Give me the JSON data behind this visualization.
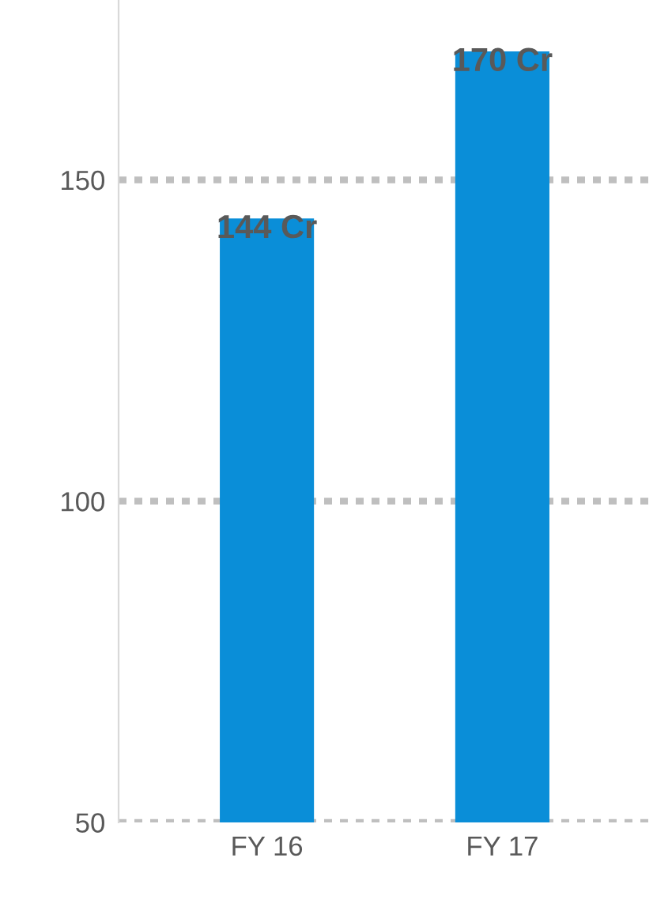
{
  "chart_data": {
    "type": "bar",
    "categories": [
      "FY 16",
      "FY 17"
    ],
    "values": [
      144,
      170
    ],
    "value_labels": [
      "144 Cr",
      "170 Cr"
    ],
    "color": "#0a8ed8",
    "ylim": [
      50,
      178
    ],
    "yticks": [
      50,
      100,
      150
    ],
    "grid": "y"
  }
}
